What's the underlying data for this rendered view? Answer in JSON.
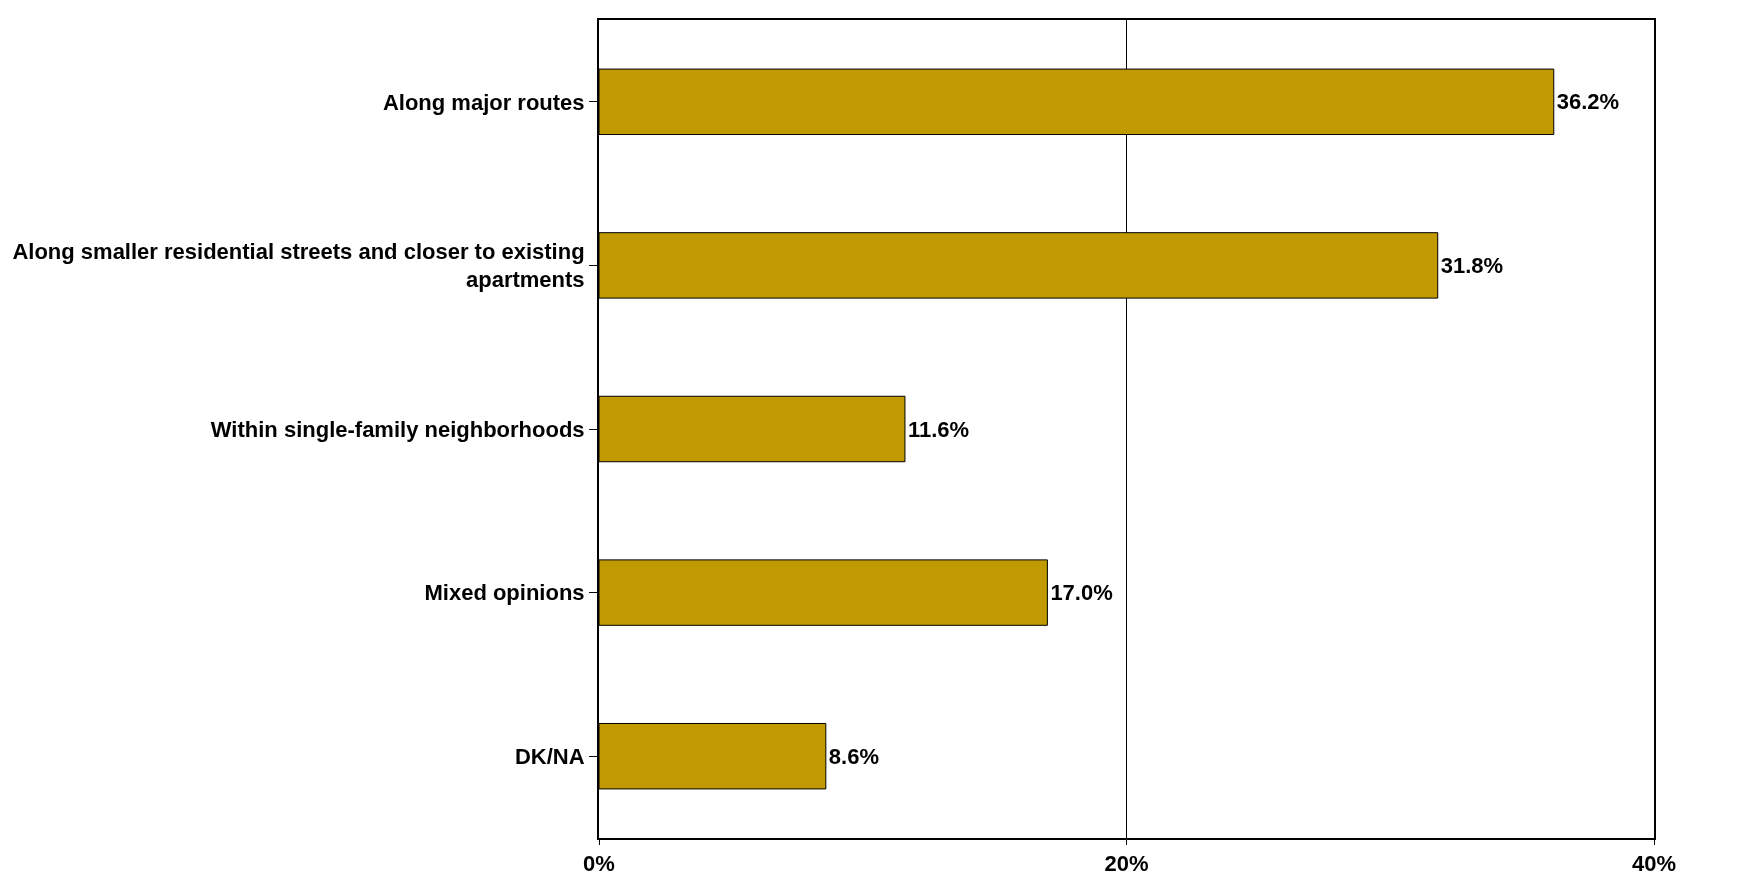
{
  "chart_data": {
    "type": "bar",
    "orientation": "horizontal",
    "categories": [
      "Along major routes",
      "Along smaller residential streets and closer to existing apartments",
      "Within single-family neighborhoods",
      "Mixed opinions",
      "DK/NA"
    ],
    "values": [
      36.2,
      31.8,
      11.6,
      17.0,
      8.6
    ],
    "value_labels": [
      "36.2%",
      "31.8%",
      "11.6%",
      "17.0%",
      "8.6%"
    ],
    "color": "#c09a00",
    "xlim": [
      0,
      40
    ],
    "xticks": [
      {
        "value": 0,
        "label": "0%"
      },
      {
        "value": 20,
        "label": "20%"
      },
      {
        "value": 40,
        "label": "40%"
      }
    ],
    "grid": "x"
  }
}
